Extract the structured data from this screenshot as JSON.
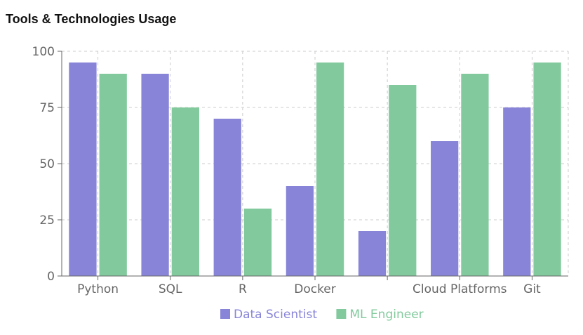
{
  "chart_data": {
    "type": "bar",
    "title": "Tools & Technologies Usage",
    "categories": [
      "Python",
      "SQL",
      "R",
      "Docker",
      "",
      "Cloud Platforms",
      "Git"
    ],
    "series": [
      {
        "name": "Data Scientist",
        "color": "#8884d8",
        "values": [
          95,
          90,
          70,
          40,
          20,
          60,
          75
        ]
      },
      {
        "name": "ML Engineer",
        "color": "#82ca9d",
        "values": [
          90,
          75,
          30,
          95,
          85,
          90,
          95
        ]
      }
    ],
    "ylim": [
      0,
      100
    ],
    "yticks": [
      0,
      25,
      50,
      75,
      100
    ],
    "grid": true,
    "legend": "bottom-center"
  }
}
